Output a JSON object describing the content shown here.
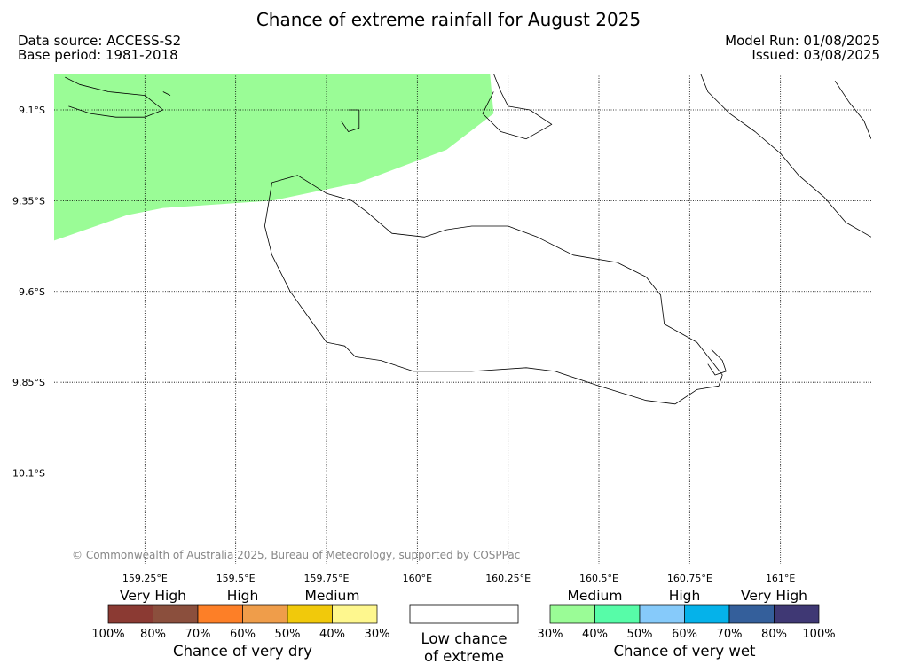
{
  "header": {
    "title": "Chance of extreme rainfall for August 2025",
    "data_source": "Data source: ACCESS-S2",
    "base_period": "Base period: 1981-2018",
    "model_run": "Model Run: 01/08/2025",
    "issued": "Issued: 03/08/2025"
  },
  "chart_data": {
    "type": "map",
    "extent": {
      "lon": [
        159.0,
        161.25
      ],
      "lat": [
        -10.35,
        -9.0
      ]
    },
    "lon_ticks": [
      {
        "value": 159.25,
        "label": "159.25°E"
      },
      {
        "value": 159.5,
        "label": "159.5°E"
      },
      {
        "value": 159.75,
        "label": "159.75°E"
      },
      {
        "value": 160.0,
        "label": "160°E"
      },
      {
        "value": 160.25,
        "label": "160.25°E"
      },
      {
        "value": 160.5,
        "label": "160.5°E"
      },
      {
        "value": 160.75,
        "label": "160.75°E"
      },
      {
        "value": 161.0,
        "label": "161°E"
      }
    ],
    "lat_ticks": [
      {
        "value": -9.1,
        "label": "9.1°S"
      },
      {
        "value": -9.35,
        "label": "9.35°S"
      },
      {
        "value": -9.6,
        "label": "9.6°S"
      },
      {
        "value": -9.85,
        "label": "9.85°S"
      },
      {
        "value": -10.1,
        "label": "10.1°S"
      }
    ],
    "grid": true,
    "regions": [
      {
        "category": "Medium (wet, 30%-40%)",
        "color": "#9afc96",
        "polygon_lonlat": [
          [
            159.0,
            -9.0
          ],
          [
            160.2,
            -9.0
          ],
          [
            160.21,
            -9.11
          ],
          [
            160.08,
            -9.21
          ],
          [
            159.84,
            -9.3
          ],
          [
            159.6,
            -9.35
          ],
          [
            159.3,
            -9.37
          ],
          [
            159.2,
            -9.39
          ],
          [
            159.0,
            -9.46
          ]
        ]
      }
    ],
    "coastlines": [
      [
        [
          159.82,
          -9.35
        ],
        [
          159.86,
          -9.38
        ],
        [
          159.93,
          -9.44
        ],
        [
          160.02,
          -9.45
        ],
        [
          160.08,
          -9.43
        ],
        [
          160.15,
          -9.42
        ],
        [
          160.25,
          -9.42
        ],
        [
          160.33,
          -9.45
        ],
        [
          160.43,
          -9.5
        ],
        [
          160.55,
          -9.52
        ],
        [
          160.63,
          -9.56
        ],
        [
          160.67,
          -9.61
        ],
        [
          160.68,
          -9.69
        ],
        [
          160.77,
          -9.74
        ],
        [
          160.84,
          -9.83
        ],
        [
          160.83,
          -9.86
        ],
        [
          160.77,
          -9.87
        ],
        [
          160.71,
          -9.91
        ],
        [
          160.63,
          -9.9
        ],
        [
          160.5,
          -9.86
        ],
        [
          160.38,
          -9.82
        ],
        [
          160.3,
          -9.81
        ],
        [
          160.15,
          -9.82
        ],
        [
          159.99,
          -9.82
        ],
        [
          159.9,
          -9.79
        ],
        [
          159.83,
          -9.78
        ],
        [
          159.8,
          -9.75
        ],
        [
          159.75,
          -9.74
        ],
        [
          159.7,
          -9.67
        ],
        [
          159.65,
          -9.6
        ],
        [
          159.6,
          -9.5
        ],
        [
          159.58,
          -9.42
        ],
        [
          159.59,
          -9.36
        ],
        [
          159.6,
          -9.3
        ],
        [
          159.67,
          -9.28
        ],
        [
          159.75,
          -9.33
        ],
        [
          159.82,
          -9.35
        ]
      ],
      [
        [
          159.03,
          -9.01
        ],
        [
          159.07,
          -9.03
        ],
        [
          159.15,
          -9.05
        ],
        [
          159.25,
          -9.06
        ],
        [
          159.3,
          -9.1
        ],
        [
          159.25,
          -9.12
        ],
        [
          159.17,
          -9.12
        ],
        [
          159.1,
          -9.11
        ],
        [
          159.04,
          -9.09
        ]
      ],
      [
        [
          159.81,
          -9.1
        ],
        [
          159.84,
          -9.1
        ],
        [
          159.84,
          -9.15
        ],
        [
          159.81,
          -9.16
        ],
        [
          159.79,
          -9.13
        ]
      ],
      [
        [
          160.21,
          -9.0
        ],
        [
          160.23,
          -9.05
        ],
        [
          160.25,
          -9.09
        ],
        [
          160.31,
          -9.1
        ],
        [
          160.37,
          -9.14
        ],
        [
          160.3,
          -9.18
        ],
        [
          160.23,
          -9.16
        ],
        [
          160.18,
          -9.11
        ],
        [
          160.21,
          -9.05
        ]
      ],
      [
        [
          160.78,
          -9.0
        ],
        [
          160.8,
          -9.05
        ],
        [
          160.86,
          -9.11
        ],
        [
          160.93,
          -9.16
        ],
        [
          161.0,
          -9.22
        ],
        [
          161.05,
          -9.28
        ],
        [
          161.12,
          -9.34
        ],
        [
          161.18,
          -9.41
        ],
        [
          161.25,
          -9.45
        ]
      ],
      [
        [
          161.15,
          -9.02
        ],
        [
          161.19,
          -9.08
        ],
        [
          161.23,
          -9.13
        ],
        [
          161.25,
          -9.18
        ]
      ],
      [
        [
          160.81,
          -9.76
        ],
        [
          160.84,
          -9.79
        ],
        [
          160.85,
          -9.82
        ],
        [
          160.82,
          -9.83
        ],
        [
          160.8,
          -9.8
        ]
      ],
      [
        [
          160.59,
          -9.56
        ],
        [
          160.61,
          -9.56
        ]
      ],
      [
        [
          159.3,
          -9.05
        ],
        [
          159.32,
          -9.06
        ]
      ]
    ],
    "credit": "© Commonwealth of Australia 2025, Bureau of Meteorology, supported by COSPPac"
  },
  "legend": {
    "dry": {
      "title": "Chance of very dry",
      "categories": [
        "Very High",
        "High",
        "Medium"
      ],
      "colors": [
        "#8b3a33",
        "#8b4f3d",
        "#fd7f27",
        "#ef9d4a",
        "#f1c90b",
        "#fef78e"
      ],
      "ticks": [
        "100%",
        "80%",
        "70%",
        "60%",
        "50%",
        "40%",
        "30%"
      ]
    },
    "low": {
      "label_line1": "Low chance",
      "label_line2": "of extreme",
      "color": "#ffffff"
    },
    "wet": {
      "title": "Chance of very wet",
      "categories": [
        "Medium",
        "High",
        "Very High"
      ],
      "colors": [
        "#9afc96",
        "#57fca8",
        "#86cafa",
        "#05b2ea",
        "#345f9b",
        "#3f3874"
      ],
      "ticks": [
        "30%",
        "40%",
        "50%",
        "60%",
        "70%",
        "80%",
        "100%"
      ]
    }
  }
}
